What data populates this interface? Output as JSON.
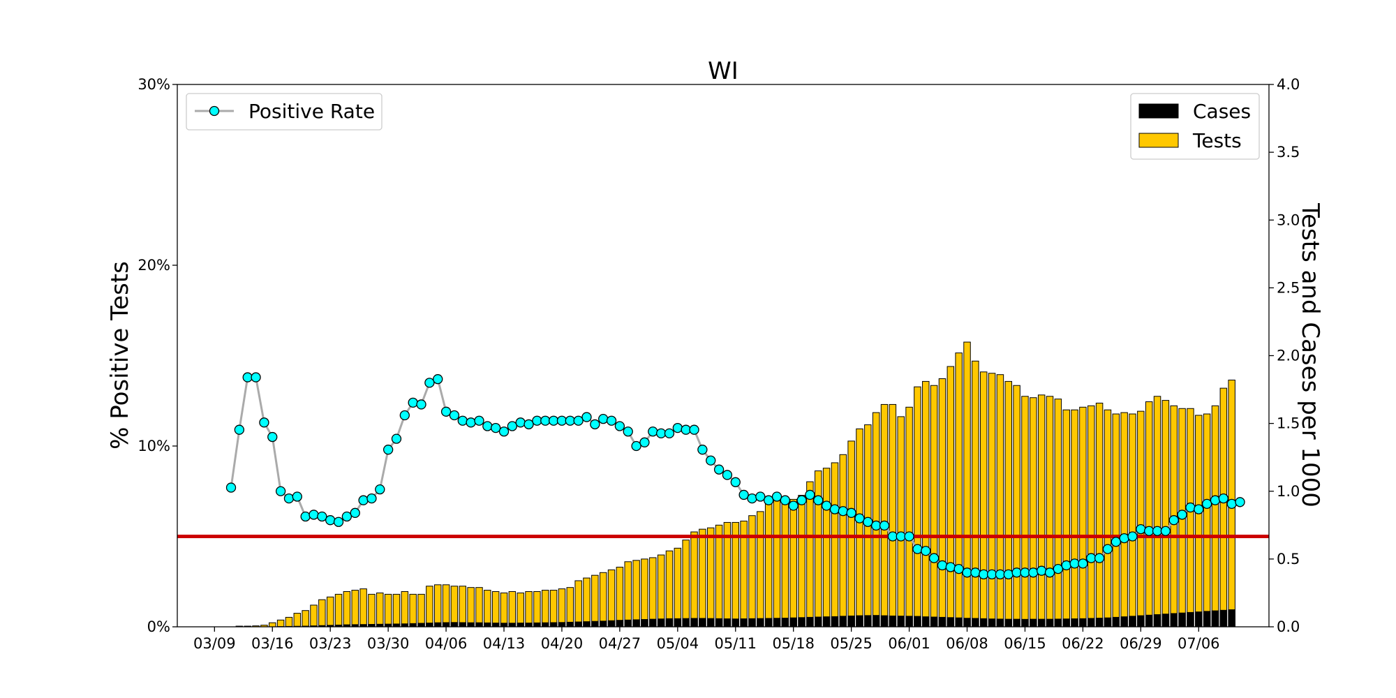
{
  "chart_data": {
    "type": "bar+line",
    "title": "WI",
    "ylabel_left": "% Positive Tests",
    "ylabel_right": "Tests and Cases per 1000",
    "left_axis": {
      "ylim": [
        0,
        30
      ],
      "ticks": [
        0,
        10,
        20,
        30
      ],
      "tick_labels": [
        "0%",
        "10%",
        "20%",
        "30%"
      ]
    },
    "right_axis": {
      "ylim": [
        0,
        4.0
      ],
      "ticks": [
        0,
        0.5,
        1.0,
        1.5,
        2.0,
        2.5,
        3.0,
        3.5,
        4.0
      ],
      "tick_labels": [
        "0.0",
        "0.5",
        "1.0",
        "1.5",
        "2.0",
        "2.5",
        "3.0",
        "3.5",
        "4.0"
      ]
    },
    "x_ticks": [
      {
        "index": 0,
        "label": "03/09"
      },
      {
        "index": 7,
        "label": "03/16"
      },
      {
        "index": 14,
        "label": "03/23"
      },
      {
        "index": 21,
        "label": "03/30"
      },
      {
        "index": 28,
        "label": "04/06"
      },
      {
        "index": 35,
        "label": "04/13"
      },
      {
        "index": 42,
        "label": "04/20"
      },
      {
        "index": 49,
        "label": "04/27"
      },
      {
        "index": 56,
        "label": "05/04"
      },
      {
        "index": 63,
        "label": "05/11"
      },
      {
        "index": 70,
        "label": "05/18"
      },
      {
        "index": 77,
        "label": "05/25"
      },
      {
        "index": 84,
        "label": "06/01"
      },
      {
        "index": 91,
        "label": "06/08"
      },
      {
        "index": 98,
        "label": "06/15"
      },
      {
        "index": 105,
        "label": "06/22"
      },
      {
        "index": 112,
        "label": "06/29"
      },
      {
        "index": 119,
        "label": "07/06"
      }
    ],
    "x_range": [
      -4.5,
      127.5
    ],
    "reference_line": {
      "value": 5,
      "axis": "left",
      "color": "#cc0000"
    },
    "legend_left": {
      "placement": "top-left",
      "entries": [
        "Positive Rate"
      ]
    },
    "legend_right": {
      "placement": "top-right",
      "entries": [
        "Cases",
        "Tests"
      ]
    },
    "colors": {
      "tests": "#ffc800",
      "cases": "#000000",
      "line": "#aaaaaa",
      "marker": "#00ffff",
      "reference": "#cc0000"
    },
    "tests_start_index": 3,
    "tests_per_1000": [
      0.005,
      0.005,
      0.007,
      0.012,
      0.03,
      0.05,
      0.07,
      0.1,
      0.12,
      0.16,
      0.2,
      0.22,
      0.24,
      0.26,
      0.27,
      0.28,
      0.24,
      0.25,
      0.24,
      0.24,
      0.26,
      0.24,
      0.24,
      0.3,
      0.31,
      0.31,
      0.3,
      0.3,
      0.29,
      0.29,
      0.27,
      0.26,
      0.25,
      0.26,
      0.25,
      0.26,
      0.26,
      0.27,
      0.27,
      0.28,
      0.29,
      0.34,
      0.36,
      0.38,
      0.4,
      0.42,
      0.44,
      0.48,
      0.49,
      0.5,
      0.51,
      0.53,
      0.56,
      0.58,
      0.64,
      0.7,
      0.72,
      0.73,
      0.75,
      0.77,
      0.77,
      0.78,
      0.82,
      0.85,
      0.91,
      0.95,
      0.95,
      0.94,
      0.97,
      1.07,
      1.15,
      1.17,
      1.21,
      1.27,
      1.37,
      1.46,
      1.49,
      1.58,
      1.64,
      1.64,
      1.55,
      1.62,
      1.77,
      1.81,
      1.78,
      1.83,
      1.92,
      2.02,
      2.1,
      1.96,
      1.88,
      1.87,
      1.86,
      1.81,
      1.78,
      1.7,
      1.69,
      1.71,
      1.7,
      1.68,
      1.6,
      1.6,
      1.62,
      1.63,
      1.65,
      1.6,
      1.57,
      1.58,
      1.57,
      1.59,
      1.66,
      1.7,
      1.67,
      1.63,
      1.61,
      1.61,
      1.56,
      1.57,
      1.63,
      1.76,
      1.82
    ],
    "cases_per_1000": [
      0,
      0,
      0,
      0,
      0,
      0.002,
      0.003,
      0.004,
      0.005,
      0.007,
      0.009,
      0.011,
      0.013,
      0.015,
      0.016,
      0.017,
      0.018,
      0.019,
      0.02,
      0.021,
      0.022,
      0.024,
      0.026,
      0.028,
      0.03,
      0.031,
      0.032,
      0.031,
      0.03,
      0.03,
      0.029,
      0.028,
      0.027,
      0.027,
      0.028,
      0.028,
      0.029,
      0.03,
      0.031,
      0.032,
      0.034,
      0.036,
      0.038,
      0.04,
      0.042,
      0.045,
      0.048,
      0.05,
      0.052,
      0.054,
      0.056,
      0.058,
      0.06,
      0.06,
      0.061,
      0.062,
      0.062,
      0.061,
      0.06,
      0.059,
      0.058,
      0.059,
      0.06,
      0.061,
      0.062,
      0.063,
      0.064,
      0.066,
      0.068,
      0.07,
      0.072,
      0.074,
      0.075,
      0.078,
      0.08,
      0.082,
      0.083,
      0.084,
      0.082,
      0.08,
      0.079,
      0.078,
      0.077,
      0.074,
      0.072,
      0.07,
      0.068,
      0.066,
      0.063,
      0.062,
      0.06,
      0.058,
      0.057,
      0.056,
      0.056,
      0.055,
      0.056,
      0.056,
      0.056,
      0.057,
      0.058,
      0.059,
      0.06,
      0.062,
      0.064,
      0.066,
      0.07,
      0.074,
      0.078,
      0.082,
      0.086,
      0.09,
      0.094,
      0.098,
      0.102,
      0.106,
      0.11,
      0.114,
      0.118,
      0.122,
      0.126,
      0.13
    ],
    "positive_rate_start_index": 2,
    "positive_rate_pct": [
      7.7,
      10.9,
      13.8,
      13.8,
      11.3,
      10.5,
      7.5,
      7.1,
      7.2,
      6.1,
      6.2,
      6.1,
      5.9,
      5.8,
      6.1,
      6.3,
      7.0,
      7.1,
      7.6,
      9.8,
      10.4,
      11.7,
      12.4,
      12.3,
      13.5,
      13.7,
      11.9,
      11.7,
      11.4,
      11.3,
      11.4,
      11.1,
      11.0,
      10.8,
      11.1,
      11.3,
      11.2,
      11.4,
      11.4,
      11.4,
      11.4,
      11.4,
      11.4,
      11.6,
      11.2,
      11.5,
      11.4,
      11.1,
      10.8,
      10.0,
      10.2,
      10.8,
      10.7,
      10.7,
      11.0,
      10.9,
      10.9,
      9.8,
      9.2,
      8.7,
      8.4,
      8.0,
      7.3,
      7.1,
      7.2,
      7.0,
      7.2,
      7.0,
      6.7,
      7.0,
      7.3,
      7.0,
      6.7,
      6.5,
      6.4,
      6.3,
      6.0,
      5.8,
      5.6,
      5.6,
      5.0,
      5.0,
      5.0,
      4.3,
      4.2,
      3.8,
      3.4,
      3.3,
      3.2,
      3.0,
      3.0,
      2.9,
      2.9,
      2.9,
      2.9,
      3.0,
      3.0,
      3.0,
      3.1,
      3.0,
      3.2,
      3.4,
      3.5,
      3.5,
      3.8,
      3.8,
      4.3,
      4.7,
      4.9,
      5.0,
      5.4,
      5.3,
      5.3,
      5.3,
      5.9,
      6.2,
      6.6,
      6.5,
      6.8,
      7.0,
      7.1,
      6.8,
      6.9
    ]
  }
}
